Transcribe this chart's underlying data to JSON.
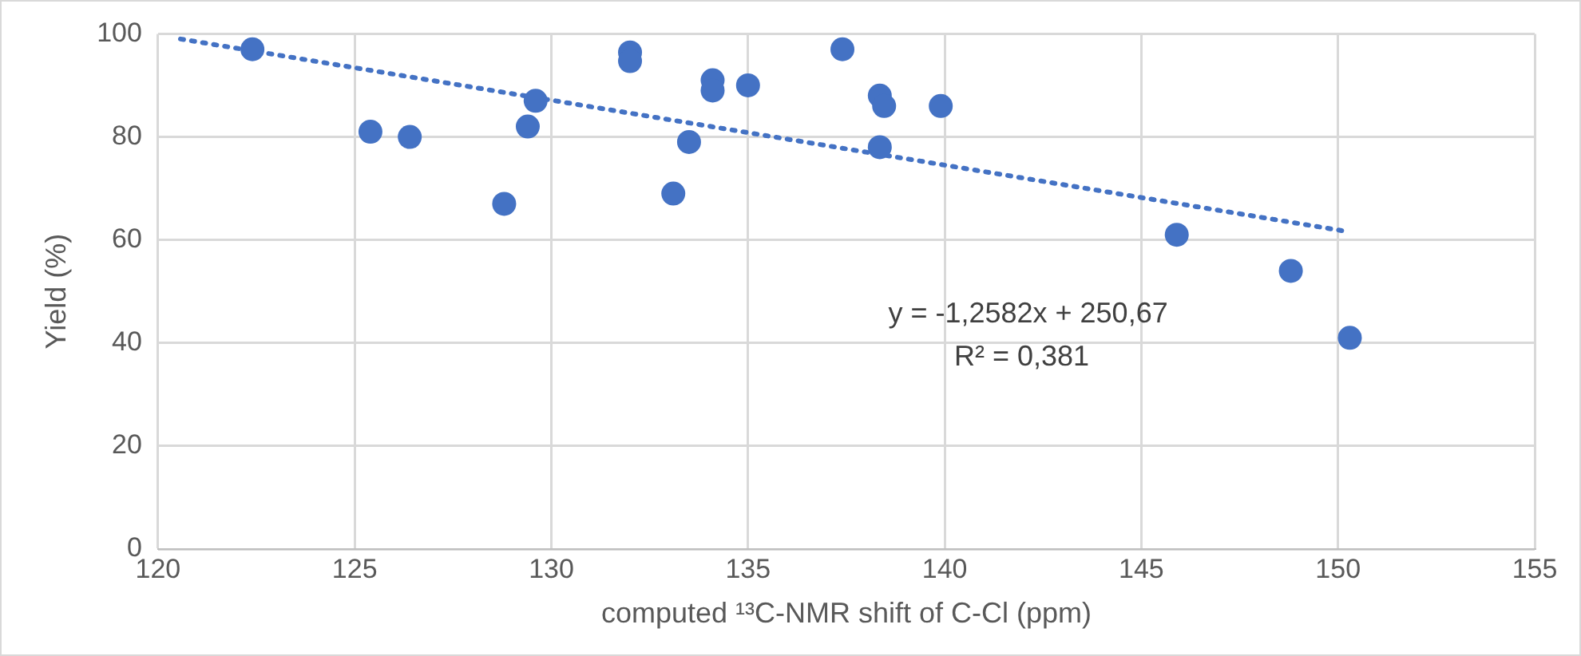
{
  "chart_data": {
    "type": "scatter",
    "xlabel": "computed ¹³C-NMR shift of C-Cl (ppm)",
    "ylabel": "Yield (%)",
    "xlim": [
      120,
      155
    ],
    "xticks": [
      120,
      125,
      130,
      135,
      140,
      145,
      150,
      155
    ],
    "ylim": [
      0,
      100
    ],
    "yticks": [
      0,
      20,
      40,
      60,
      80,
      100
    ],
    "grid": true,
    "legend": false,
    "marker": "circle",
    "series": [
      {
        "color": "#4472c4",
        "x": [
          122.4,
          125.4,
          126.4,
          128.8,
          129.4,
          129.6,
          132.0,
          132.0,
          133.1,
          133.5,
          134.1,
          134.1,
          135.0,
          137.4,
          138.35,
          138.46,
          138.35,
          139.9,
          145.9,
          148.8,
          150.3
        ],
        "values": [
          97,
          81,
          80,
          67,
          82,
          87,
          96.4,
          94.7,
          69,
          79,
          91,
          89,
          90,
          97,
          88,
          86,
          78,
          86,
          61,
          54,
          41
        ]
      },
      {
        "type": "line",
        "color": "#4472c4",
        "marker": "none",
        "line_style": "dotted",
        "x": [
          120.57,
          150.1
        ],
        "values": [
          99.0,
          61.8
        ]
      }
    ],
    "annotations": [
      "y = -1,2582x + 250,67",
      "R² = 0,381"
    ]
  }
}
